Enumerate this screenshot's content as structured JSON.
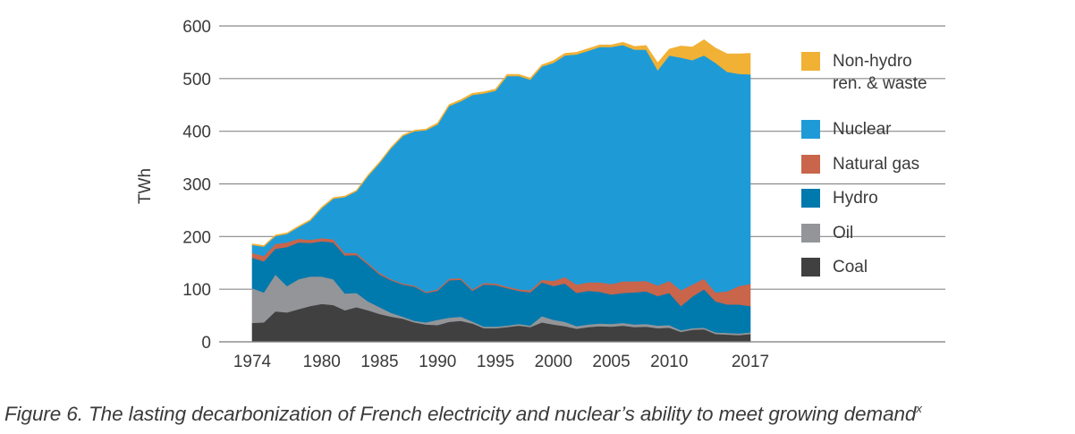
{
  "chart_data": {
    "type": "area",
    "stacked": true,
    "title": "",
    "xlabel": "",
    "ylabel": "TWh",
    "ylim": [
      0,
      600
    ],
    "yticks": [
      0,
      100,
      200,
      300,
      400,
      500,
      600
    ],
    "xlim": [
      1974,
      2017
    ],
    "xtick_labels": [
      "1974",
      "1980",
      "1985",
      "1990",
      "1995",
      "2000",
      "2005",
      "2010",
      "2017"
    ],
    "grid": "horizontal",
    "legend_position": "right",
    "x": [
      1974,
      1975,
      1976,
      1977,
      1978,
      1979,
      1980,
      1981,
      1982,
      1983,
      1984,
      1985,
      1986,
      1987,
      1988,
      1989,
      1990,
      1991,
      1992,
      1993,
      1994,
      1995,
      1996,
      1997,
      1998,
      1999,
      2000,
      2001,
      2002,
      2003,
      2004,
      2005,
      2006,
      2007,
      2008,
      2009,
      2010,
      2011,
      2012,
      2013,
      2014,
      2015,
      2016,
      2017
    ],
    "series": [
      {
        "name": "Coal",
        "color": "#404040",
        "values": [
          36,
          37,
          58,
          56,
          62,
          68,
          72,
          70,
          60,
          66,
          60,
          53,
          48,
          44,
          37,
          33,
          32,
          38,
          40,
          35,
          26,
          26,
          28,
          31,
          28,
          37,
          33,
          30,
          25,
          28,
          30,
          29,
          31,
          28,
          29,
          26,
          27,
          19,
          23,
          24,
          15,
          14,
          13,
          15
        ]
      },
      {
        "name": "Oil",
        "color": "#939598",
        "values": [
          66,
          57,
          70,
          50,
          57,
          56,
          52,
          49,
          32,
          27,
          17,
          13,
          7,
          4,
          3,
          4,
          10,
          8,
          8,
          4,
          3,
          3,
          3,
          3,
          3,
          12,
          9,
          8,
          5,
          5,
          5,
          5,
          5,
          5,
          5,
          5,
          5,
          3,
          3,
          3,
          3,
          3,
          3,
          3
        ]
      },
      {
        "name": "Hydro",
        "color": "#0079AD",
        "values": [
          58,
          59,
          49,
          74,
          70,
          64,
          67,
          70,
          72,
          72,
          70,
          62,
          62,
          61,
          65,
          56,
          55,
          71,
          70,
          58,
          80,
          79,
          71,
          63,
          63,
          64,
          64,
          73,
          63,
          64,
          60,
          56,
          57,
          61,
          62,
          56,
          61,
          46,
          60,
          73,
          59,
          54,
          55,
          50
        ]
      },
      {
        "name": "Natural gas",
        "color": "#C8654B",
        "values": [
          9,
          10,
          9,
          9,
          7,
          6,
          6,
          6,
          5,
          4,
          3,
          3,
          2,
          2,
          2,
          2,
          3,
          3,
          3,
          3,
          3,
          3,
          3,
          3,
          4,
          5,
          10,
          12,
          16,
          16,
          18,
          20,
          22,
          21,
          20,
          20,
          23,
          30,
          23,
          20,
          17,
          25,
          35,
          42
        ]
      },
      {
        "name": "Nuclear",
        "color": "#1E9BD7",
        "values": [
          15,
          18,
          15,
          16,
          22,
          36,
          57,
          77,
          106,
          117,
          165,
          209,
          249,
          280,
          293,
          307,
          313,
          328,
          336,
          369,
          360,
          366,
          400,
          405,
          400,
          405,
          414,
          421,
          437,
          440,
          447,
          450,
          449,
          440,
          439,
          409,
          428,
          442,
          426,
          424,
          436,
          417,
          403,
          398
        ]
      },
      {
        "name": "Non-hydro ren. & waste",
        "color": "#F1B135",
        "values": [
          2,
          2,
          2,
          2,
          2,
          2,
          2,
          2,
          2,
          2,
          2,
          2,
          2,
          2,
          2,
          2,
          3,
          3,
          3,
          3,
          3,
          3,
          3,
          3,
          3,
          3,
          4,
          4,
          4,
          4,
          4,
          4,
          5,
          6,
          8,
          14,
          12,
          22,
          25,
          30,
          28,
          34,
          38,
          40
        ]
      }
    ]
  },
  "caption": {
    "text": "Figure 6. The lasting decarbonization of French electricity and nuclear’s ability to meet growing demand",
    "superscript": "x"
  }
}
